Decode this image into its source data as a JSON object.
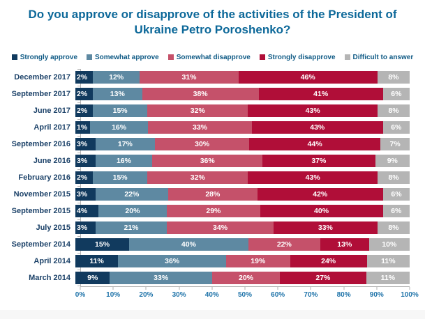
{
  "page": {
    "background": "#ffffff",
    "footer_strip_color": "#f7f7f7"
  },
  "chart_data": {
    "type": "bar",
    "variant": "horizontal-100%-stacked",
    "title": "Do you approve or disapprove of the activities of the President of Ukraine Petro Poroshenko?",
    "categories": [
      "December 2017",
      "September 2017",
      "June 2017",
      "April 2017",
      "September 2016",
      "June 2016",
      "February 2016",
      "November 2015",
      "September 2015",
      "July 2015",
      "September 2014",
      "April 2014",
      "March 2014"
    ],
    "series": [
      {
        "name": "Strongly approve",
        "color": "#113A5E",
        "values": [
          2,
          2,
          2,
          1,
          3,
          3,
          2,
          3,
          4,
          3,
          15,
          11,
          9
        ]
      },
      {
        "name": "Somewhat approve",
        "color": "#5E89A2",
        "values": [
          12,
          13,
          15,
          16,
          17,
          16,
          15,
          22,
          20,
          21,
          40,
          36,
          33
        ]
      },
      {
        "name": "Somewhat disapprove",
        "color": "#C5516A",
        "values": [
          31,
          38,
          32,
          33,
          30,
          36,
          32,
          28,
          29,
          34,
          22,
          19,
          20
        ]
      },
      {
        "name": "Strongly disapprove",
        "color": "#B00E38",
        "values": [
          46,
          41,
          43,
          43,
          44,
          37,
          43,
          42,
          40,
          33,
          13,
          24,
          27
        ]
      },
      {
        "name": "Difficult to answer",
        "color": "#B5B5B5",
        "values": [
          8,
          6,
          8,
          6,
          7,
          9,
          8,
          6,
          6,
          8,
          10,
          11,
          11
        ]
      }
    ],
    "value_suffix": "%",
    "x_ticks": [
      "0%",
      "10%",
      "20%",
      "30%",
      "40%",
      "50%",
      "60%",
      "70%",
      "80%",
      "90%",
      "100%"
    ],
    "xlim": [
      0,
      100
    ],
    "legend_position": "top",
    "grid": false,
    "colors": {
      "title": "#0C6899",
      "legend_text": "#0F5A85",
      "category_label": "#1B4168",
      "axis_line": "#b3b3b3",
      "tick_label": "#1E73A9",
      "bar_label": "#ffffff"
    }
  }
}
